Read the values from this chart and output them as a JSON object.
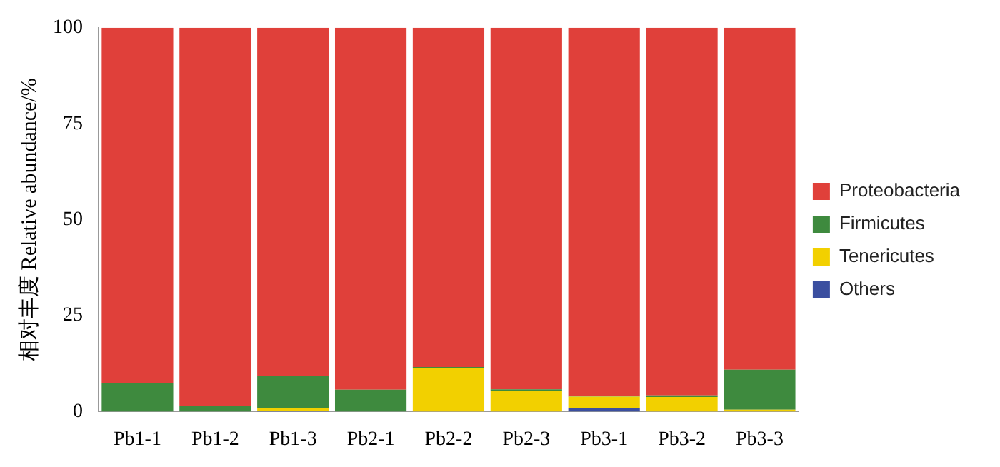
{
  "chart_data": {
    "type": "bar",
    "stacked": true,
    "ylabel": "相对丰度 Relative abundance/%",
    "categories": [
      "Pb1-1",
      "Pb1-2",
      "Pb1-3",
      "Pb2-1",
      "Pb2-2",
      "Pb2-3",
      "Pb3-1",
      "Pb3-2",
      "Pb3-3"
    ],
    "series": [
      {
        "name": "Others",
        "color": "#3b4fa0",
        "values": [
          0,
          0,
          0.2,
          0,
          0,
          0,
          1.0,
          0,
          0
        ]
      },
      {
        "name": "Tenericutes",
        "color": "#f2d000",
        "values": [
          0,
          0,
          0.6,
          0,
          11.3,
          5.3,
          2.9,
          3.8,
          0.5
        ]
      },
      {
        "name": "Firmicutes",
        "color": "#3e8a3e",
        "values": [
          7.4,
          1.4,
          8.4,
          5.7,
          0.3,
          0.5,
          0.2,
          0.4,
          10.4
        ]
      },
      {
        "name": "Proteobacteria",
        "color": "#e0403a",
        "values": [
          92.6,
          98.6,
          90.8,
          94.3,
          88.4,
          94.2,
          95.9,
          95.8,
          89.1
        ]
      }
    ],
    "ylim": [
      0,
      100
    ],
    "yticks": [
      0,
      25,
      50,
      75,
      100
    ],
    "grid": false,
    "legend": "right"
  }
}
